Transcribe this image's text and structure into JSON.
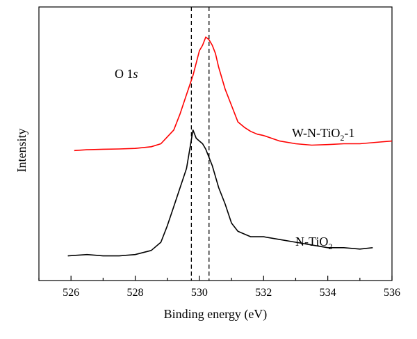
{
  "chart_data": {
    "type": "line",
    "xlabel": "Binding energy (eV)",
    "ylabel": "Intensity",
    "xlim": [
      525,
      536
    ],
    "xticks": [
      526,
      528,
      530,
      532,
      534,
      536
    ],
    "yticks": [],
    "grid": false,
    "annotations": [
      {
        "text": "O 1",
        "italic_suffix": "s",
        "x": 528.5,
        "y": 0.77
      },
      {
        "text_parts": [
          "W-N-TiO",
          "2",
          "-1"
        ],
        "x": 531.3,
        "y": 0.62
      },
      {
        "text_parts": [
          "N-TiO",
          "2"
        ],
        "x": 532.0,
        "y": 0.13
      }
    ],
    "reference_lines": [
      {
        "style": "dashed",
        "x": 529.75
      },
      {
        "style": "dashed",
        "x": 530.3
      }
    ],
    "series": [
      {
        "color": "#ff0000",
        "x": [
          526.1,
          526.5,
          527.0,
          527.5,
          528.0,
          528.5,
          528.8,
          529.0,
          529.2,
          529.4,
          529.6,
          529.8,
          530.0,
          530.1,
          530.2,
          530.3,
          530.4,
          530.5,
          530.6,
          530.8,
          531.0,
          531.2,
          531.4,
          531.6,
          531.8,
          532.0,
          532.5,
          533.0,
          533.5,
          534.0,
          534.5,
          535.0,
          535.5,
          536.0
        ],
        "values": [
          0.475,
          0.478,
          0.48,
          0.481,
          0.483,
          0.489,
          0.5,
          0.525,
          0.55,
          0.61,
          0.68,
          0.75,
          0.84,
          0.86,
          0.89,
          0.88,
          0.86,
          0.83,
          0.78,
          0.7,
          0.64,
          0.58,
          0.56,
          0.545,
          0.535,
          0.53,
          0.51,
          0.5,
          0.495,
          0.497,
          0.5,
          0.5,
          0.505,
          0.51
        ]
      },
      {
        "color": "#000000",
        "x": [
          525.9,
          526.5,
          527.0,
          527.5,
          528.0,
          528.5,
          528.8,
          529.0,
          529.2,
          529.4,
          529.6,
          529.8,
          529.9,
          530.0,
          530.1,
          530.2,
          530.4,
          530.6,
          530.8,
          531.0,
          531.2,
          531.4,
          531.6,
          532.0,
          532.5,
          533.0,
          533.5,
          534.0,
          534.5,
          535.0,
          535.4
        ],
        "values": [
          0.09,
          0.095,
          0.09,
          0.09,
          0.095,
          0.11,
          0.14,
          0.2,
          0.27,
          0.34,
          0.41,
          0.55,
          0.52,
          0.51,
          0.5,
          0.48,
          0.42,
          0.34,
          0.28,
          0.21,
          0.18,
          0.17,
          0.16,
          0.16,
          0.15,
          0.14,
          0.13,
          0.12,
          0.12,
          0.115,
          0.12
        ]
      }
    ]
  }
}
